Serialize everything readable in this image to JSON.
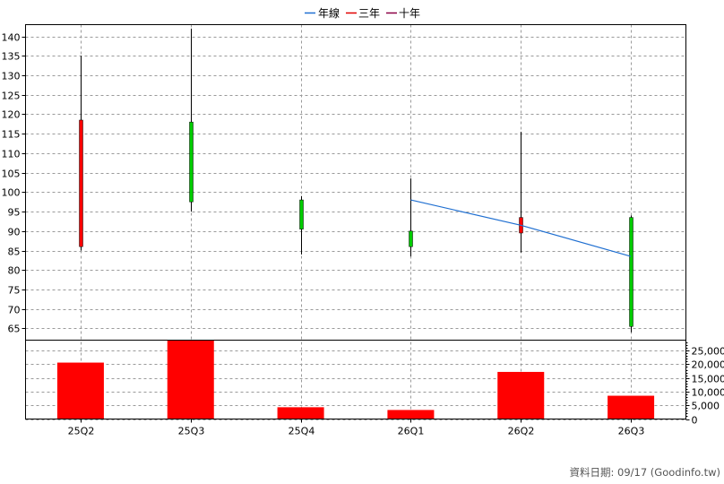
{
  "legend": [
    {
      "label": "年線",
      "color": "#1f6fd1"
    },
    {
      "label": "三年",
      "color": "#e00000"
    },
    {
      "label": "十年",
      "color": "#8b0045"
    }
  ],
  "footer": "資料日期: 09/17  (Goodinfo.tw)",
  "colors": {
    "up": "#ff0000",
    "down": "#00cc00",
    "volume": "#ff0000",
    "ma_line": "#1f6fd1"
  },
  "chart_data": [
    {
      "type": "candlestick",
      "categories": [
        "25Q2",
        "25Q3",
        "25Q4",
        "26Q1",
        "26Q2",
        "26Q3"
      ],
      "ylim": [
        62,
        143
      ],
      "yticks": [
        65,
        70,
        75,
        80,
        85,
        90,
        95,
        100,
        105,
        110,
        115,
        120,
        125,
        130,
        135,
        140
      ],
      "grid": true,
      "legend_position": "top-center",
      "candles": [
        {
          "open": 86,
          "high": 135,
          "low": 85,
          "close": 118.5,
          "direction": "up"
        },
        {
          "open": 118,
          "high": 142,
          "low": 95,
          "close": 97.5,
          "direction": "down"
        },
        {
          "open": 98,
          "high": 99,
          "low": 84,
          "close": 90.5,
          "direction": "down"
        },
        {
          "open": 90,
          "high": 103.5,
          "low": 83.5,
          "close": 86,
          "direction": "down"
        },
        {
          "open": 89.5,
          "high": 115.5,
          "low": 84.5,
          "close": 93.5,
          "direction": "up"
        },
        {
          "open": 93.5,
          "high": 94,
          "low": 64,
          "close": 65.5,
          "direction": "down"
        }
      ],
      "ma_series": [
        {
          "name": "年線",
          "points": [
            {
              "x": "26Q1",
              "y": 98
            },
            {
              "x": "26Q2",
              "y": 91.5
            },
            {
              "x": "26Q3",
              "y": 83.5
            }
          ]
        }
      ]
    },
    {
      "type": "bar",
      "categories": [
        "25Q2",
        "25Q3",
        "25Q4",
        "26Q1",
        "26Q2",
        "26Q3"
      ],
      "values": [
        20600,
        28800,
        4300,
        3300,
        17200,
        8500
      ],
      "ylim": [
        0,
        28800
      ],
      "yticks": [
        "0",
        "5,000",
        "10,000",
        "15,000",
        "20,000",
        "25,000"
      ],
      "ytick_values": [
        0,
        5000,
        10000,
        15000,
        20000,
        25000
      ],
      "grid": true
    }
  ]
}
